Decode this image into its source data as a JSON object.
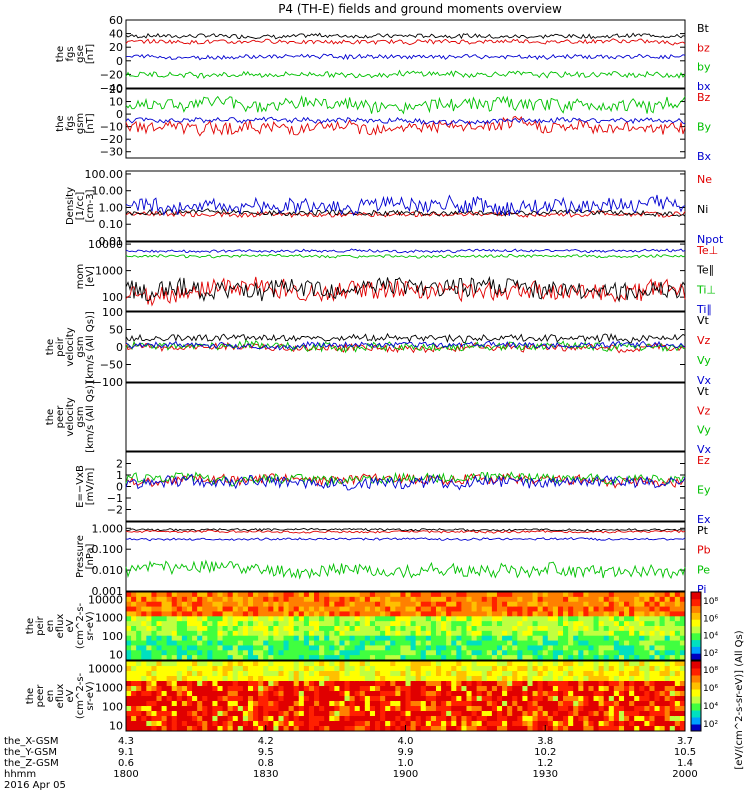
{
  "title": "P4 (TH-E) fields and ground moments overview",
  "colors": {
    "black": "#000000",
    "red": "#e00000",
    "green": "#00c000",
    "blue": "#0000d0"
  },
  "chart_data": [
    {
      "type": "line",
      "ylabel": [
        "the",
        "fgs",
        "gse",
        "[nT]"
      ],
      "yticks": [
        "60",
        "40",
        "20",
        "0",
        "−20",
        "−40"
      ],
      "ylim": [
        -40,
        60
      ],
      "tickvals": [
        60,
        40,
        20,
        0,
        -20,
        -40
      ],
      "series": [
        {
          "name": "Bt",
          "color": "black",
          "level": 37,
          "amp": 3
        },
        {
          "name": "bz",
          "color": "red",
          "level": 28,
          "amp": 3
        },
        {
          "name": "by",
          "color": "green",
          "level": -20,
          "amp": 4
        },
        {
          "name": "bx",
          "color": "blue",
          "level": 6,
          "amp": 3
        }
      ],
      "legend": [
        "Bt",
        "bz",
        "by",
        "bx"
      ]
    },
    {
      "type": "line",
      "ylabel": [
        "the",
        "fgs",
        "gsm",
        "[nT]"
      ],
      "yticks": [
        "20",
        "10",
        "0",
        "−10",
        "−20",
        "−30"
      ],
      "ylim": [
        -35,
        20
      ],
      "tickvals": [
        20,
        10,
        0,
        -10,
        -20,
        -30
      ],
      "series": [
        {
          "name": "Bz",
          "color": "red",
          "level": -10,
          "amp": 5
        },
        {
          "name": "By",
          "color": "green",
          "level": 8,
          "amp": 5
        },
        {
          "name": "Bx",
          "color": "blue",
          "level": -5,
          "amp": 2
        }
      ],
      "legend": [
        "Bz",
        "By",
        "Bx"
      ]
    },
    {
      "type": "line",
      "log": true,
      "ylabel": [
        "Density",
        "[1/cc]",
        "[cm-3]"
      ],
      "yticks": [
        "100.00",
        "10.00",
        "1.00",
        "0.10",
        "0.01"
      ],
      "ylim": [
        0.01,
        150
      ],
      "tickvals": [
        100,
        10,
        1,
        0.1,
        0.01
      ],
      "series": [
        {
          "name": "Ne",
          "color": "red",
          "level": 0.4,
          "amp": 0.15
        },
        {
          "name": "Ni",
          "color": "black",
          "level": 0.5,
          "amp": 0.15
        },
        {
          "name": "Npot",
          "color": "blue",
          "level": 1.2,
          "amp": 0.45
        }
      ],
      "legend": [
        "Ne",
        "Ni",
        "Npot"
      ]
    },
    {
      "type": "line",
      "log": true,
      "ylabel": [
        "mom",
        "[eV]"
      ],
      "yticks": [
        "10000",
        "1000",
        "100"
      ],
      "ylim": [
        30,
        12000
      ],
      "tickvals": [
        10000,
        1000,
        100
      ],
      "series": [
        {
          "name": "Te⊥",
          "color": "red",
          "level": 180,
          "amp": 0.35
        },
        {
          "name": "Te∥",
          "color": "black",
          "level": 200,
          "amp": 0.35
        },
        {
          "name": "Ti⊥",
          "color": "green",
          "level": 3500,
          "amp": 0.05
        },
        {
          "name": "Ti∥",
          "color": "blue",
          "level": 5500,
          "amp": 0.05
        }
      ],
      "legend": [
        "Te⊥",
        "Te∥",
        "Ti⊥",
        "Ti∥"
      ]
    },
    {
      "type": "line",
      "ylabel": [
        "the",
        "peir",
        "velocity",
        "gsm",
        "[km/s (All Qs)]"
      ],
      "yticks": [
        "100",
        "50",
        "0",
        "−50",
        "−100"
      ],
      "ylim": [
        -100,
        100
      ],
      "tickvals": [
        100,
        50,
        0,
        -50,
        -100
      ],
      "series": [
        {
          "name": "Vt",
          "color": "black",
          "level": 25,
          "amp": 10
        },
        {
          "name": "Vz",
          "color": "red",
          "level": 0,
          "amp": 10
        },
        {
          "name": "Vy",
          "color": "green",
          "level": 3,
          "amp": 12
        },
        {
          "name": "Vx",
          "color": "blue",
          "level": 5,
          "amp": 8
        }
      ],
      "legend": [
        "Vt",
        "Vz",
        "Vy",
        "Vx"
      ]
    },
    {
      "type": "line",
      "ylabel": [
        "the",
        "peer",
        "velocity",
        "gsm",
        "[km/s (All Qs)]"
      ],
      "yticks": [],
      "series": [],
      "legend": [
        "Vt",
        "Vz",
        "Vy",
        "Vx"
      ],
      "legend_colors": [
        "black",
        "red",
        "green",
        "blue"
      ]
    },
    {
      "type": "line",
      "ylabel": [
        "E=−VxB",
        "[mV/m]"
      ],
      "yticks": [
        "2",
        "1",
        "0",
        "−1",
        "−2"
      ],
      "ylim": [
        -3,
        3
      ],
      "tickvals": [
        2,
        1,
        0,
        -1,
        -2
      ],
      "series": [
        {
          "name": "Ez",
          "color": "red",
          "level": 0.6,
          "amp": 0.4
        },
        {
          "name": "Ey",
          "color": "green",
          "level": 0.7,
          "amp": 0.4
        },
        {
          "name": "Ex",
          "color": "blue",
          "level": 0.4,
          "amp": 0.5
        }
      ],
      "legend": [
        "Ez",
        "Ey",
        "Ex"
      ]
    },
    {
      "type": "line",
      "log": true,
      "ylabel": [
        "Pressure",
        "[nPa]"
      ],
      "yticks": [
        "1.000",
        "0.100",
        "0.010",
        "0.001"
      ],
      "ylim": [
        0.001,
        2
      ],
      "tickvals": [
        1,
        0.1,
        0.01,
        0.001
      ],
      "series": [
        {
          "name": "Pt",
          "color": "black",
          "level": 0.85,
          "amp": 0.05
        },
        {
          "name": "Pb",
          "color": "red",
          "level": 0.7,
          "amp": 0.05
        },
        {
          "name": "Pe",
          "color": "green",
          "level": 0.01,
          "amp": 0.3
        },
        {
          "name": "Pi",
          "color": "blue",
          "level": 0.3,
          "amp": 0.05
        }
      ],
      "legend": [
        "Pt",
        "Pb",
        "Pe",
        "Pi"
      ]
    },
    {
      "type": "heatmap",
      "ylabel": [
        "the",
        "peir",
        "en",
        "eflux",
        "eV",
        "(cm^2-s-",
        "sr-eV)"
      ],
      "yticks": [
        "10000",
        "1000",
        "100",
        "10"
      ],
      "ylim": [
        5,
        25000
      ],
      "log": true,
      "tickvals": [
        10000,
        1000,
        100,
        10
      ],
      "colorbar_ticks": [
        "10⁸",
        "10⁶",
        "10⁴",
        "10²"
      ],
      "colorbar_label": "[eV/(cm^2-s-sr-eV)] (All Qs)",
      "ions": true
    },
    {
      "type": "heatmap",
      "ylabel": [
        "the",
        "peer",
        "en",
        "eflux",
        "eV",
        "(cm^2-s-",
        "sr-eV)"
      ],
      "yticks": [
        "10000",
        "1000",
        "100",
        "10"
      ],
      "ylim": [
        5,
        25000
      ],
      "log": true,
      "tickvals": [
        10000,
        1000,
        100,
        10
      ],
      "colorbar_ticks": [
        "10⁸",
        "10⁶",
        "10⁴",
        "10²"
      ],
      "colorbar_label": "[eV/(cm^2-s-sr-eV)] (All Qs)",
      "ions": false
    }
  ],
  "xaxis": {
    "xlim": [
      1800,
      2000
    ],
    "ticks": [
      1800,
      1830,
      1900,
      1930,
      2000
    ],
    "row_labels": [
      "the_X-GSM",
      "the_Y-GSM",
      "the_Z-GSM",
      "hhmm",
      "2016 Apr 05"
    ],
    "rows": [
      [
        "4.3",
        "4.2",
        "4.0",
        "3.8",
        "3.7"
      ],
      [
        "9.1",
        "9.5",
        "9.9",
        "10.2",
        "10.5"
      ],
      [
        "0.6",
        "0.8",
        "1.0",
        "1.2",
        "1.4"
      ],
      [
        "1800",
        "1830",
        "1900",
        "1930",
        "2000"
      ]
    ]
  }
}
